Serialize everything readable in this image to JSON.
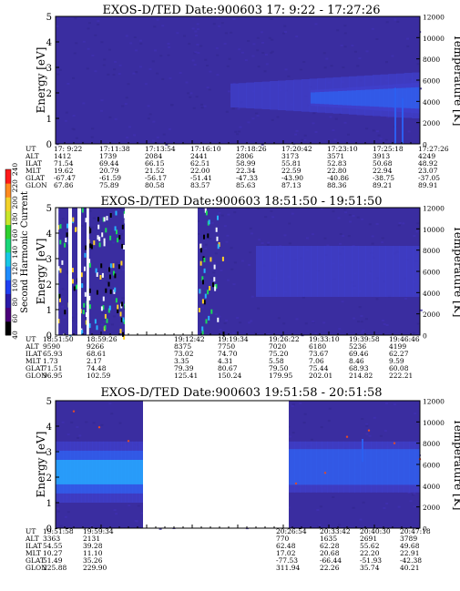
{
  "colors": {
    "background_fill": "#3a2da0",
    "plasma_mid": "#4242cc",
    "plasma_bright": "#2f63f0",
    "plasma_peak": "#26b2ff",
    "spot_green": "#1ad85a",
    "spot_white": "#f2f6ff",
    "spot_black": "#000000",
    "data_gap": "#ffffff",
    "text": "#000000"
  },
  "colorbar": {
    "title": "Second Harmonic Current",
    "ticks": [
      "40",
      "60",
      "80",
      "100",
      "120",
      "140",
      "160",
      "180",
      "200",
      "220",
      "240"
    ],
    "palette": [
      "#000000",
      "#4b007a",
      "#2a1aa8",
      "#1f3ff2",
      "#1e8cff",
      "#17c7e6",
      "#19d77a",
      "#2ed12e",
      "#c9e62a",
      "#f2d22a",
      "#ff8a1f",
      "#ff1a1a"
    ]
  },
  "chart_data": [
    {
      "type": "heatmap",
      "title": "EXOS-D/TED   Date:900603  17: 9:22 - 17:27:26",
      "ylabel": "Energy [eV]",
      "y2label": "Temperature [K]",
      "ylim": [
        0,
        5
      ],
      "y2lim": [
        0,
        12000
      ],
      "yticks": [
        "0",
        "1",
        "2",
        "3",
        "4",
        "5"
      ],
      "y2ticks": [
        "0",
        "2000",
        "4000",
        "6000",
        "8000",
        "10000",
        "12000"
      ],
      "orbit_rows": [
        "UT",
        "ALT",
        "ILAT",
        "MLT",
        "GLAT",
        "GLON"
      ],
      "orbit_columns": [
        [
          "17: 9:22",
          "1412",
          "71.54",
          "19.62",
          "-67.47",
          "67.86"
        ],
        [
          "17:11:38",
          "1739",
          "69.44",
          "20.79",
          "-61.59",
          "75.89"
        ],
        [
          "17:13:54",
          "2084",
          "66.15",
          "21.52",
          "-56.17",
          "80.58"
        ],
        [
          "17:16:10",
          "2441",
          "62.51",
          "22.00",
          "-51.41",
          "83.57"
        ],
        [
          "17:18:26",
          "2806",
          "58.99",
          "22.34",
          "-47.33",
          "85.63"
        ],
        [
          "17:20:42",
          "3173",
          "55.81",
          "22.59",
          "-43.90",
          "87.13"
        ],
        [
          "17:23:10",
          "3571",
          "52.83",
          "22.80",
          "-40.86",
          "88.36"
        ],
        [
          "17:25:18",
          "3913",
          "50.68",
          "22.94",
          "-38.75",
          "89.21"
        ],
        [
          "17:27:26",
          "4249",
          "48.92",
          "23.07",
          "-37.05",
          "89.91"
        ]
      ],
      "gaps": [],
      "bands": [
        {
          "t0": 0.48,
          "t1": 1.0,
          "e0": 1.0,
          "e1": 2.8,
          "level": 1,
          "grow": true
        },
        {
          "t0": 0.7,
          "t1": 1.0,
          "e0": 1.2,
          "e1": 2.4,
          "level": 2,
          "grow": true
        }
      ],
      "spikes": [
        {
          "t": 0.93,
          "e0": 0.0,
          "e1": 2.2
        },
        {
          "t": 0.95,
          "e0": 0.0,
          "e1": 1.8
        }
      ],
      "hot_spots": [],
      "temperature_trace": []
    },
    {
      "type": "heatmap",
      "title": "EXOS-D/TED   Date:900603  18:51:50 - 19:51:50",
      "ylabel": "Energy [eV]",
      "y2label": "Temperature [K]",
      "ylim": [
        0,
        5
      ],
      "y2lim": [
        0,
        12000
      ],
      "yticks": [
        "0",
        "1",
        "2",
        "3",
        "4",
        "5"
      ],
      "y2ticks": [
        "0",
        "2000",
        "4000",
        "6000",
        "8000",
        "10000",
        "12000"
      ],
      "orbit_rows": [
        "UT",
        "ALT",
        "ILAT",
        "MLT",
        "GLAT",
        "GLON"
      ],
      "orbit_columns": [
        [
          "18:51:50",
          "9590",
          "65.93",
          "1.73",
          "71.51",
          "96.95"
        ],
        [
          "18:59:26",
          "9266",
          "68.61",
          "2.17",
          "74.48",
          "102.59"
        ],
        [
          "19:12:42",
          "8375",
          "73.02",
          "3.35",
          "79.39",
          "125.41"
        ],
        [
          "19:19:34",
          "7750",
          "74.70",
          "4.31",
          "80.67",
          "150.24"
        ],
        [
          "19:26:22",
          "7020",
          "75.20",
          "5.58",
          "79.50",
          "179.95"
        ],
        [
          "19:33:10",
          "6180",
          "73.67",
          "7.06",
          "75.44",
          "202.01"
        ],
        [
          "19:39:58",
          "5236",
          "69.46",
          "8.46",
          "68.93",
          "214.82"
        ],
        [
          "19:46:46",
          "4199",
          "62.27",
          "9.59",
          "60.08",
          "222.21"
        ]
      ],
      "gaps": [
        {
          "t0": 0.0,
          "t1": 0.008
        },
        {
          "t0": 0.035,
          "t1": 0.045
        },
        {
          "t0": 0.06,
          "t1": 0.07
        },
        {
          "t0": 0.085,
          "t1": 0.092
        },
        {
          "t0": 0.19,
          "t1": 0.37
        },
        {
          "t0": 0.37,
          "t1": 0.39
        }
      ],
      "bands": [
        {
          "t0": 0.55,
          "t1": 1.0,
          "e0": 1.5,
          "e1": 3.5,
          "level": 1,
          "grow": false
        }
      ],
      "spikes": [
        {
          "t": 0.24,
          "e0": 0.0,
          "e1": 1.3
        }
      ],
      "hot_spots": [
        {
          "t0": 0.0,
          "t1": 0.19,
          "e0": 0.0,
          "e1": 5.0,
          "n": 140,
          "seed": 7
        },
        {
          "t0": 0.39,
          "t1": 0.46,
          "e0": 0.0,
          "e1": 5.0,
          "n": 45,
          "seed": 11
        },
        {
          "t0": 0.22,
          "t1": 0.26,
          "e0": 0.4,
          "e1": 4.8,
          "n": 16,
          "seed": 19
        }
      ],
      "temperature_trace": []
    },
    {
      "type": "heatmap",
      "title": "EXOS-D/TED   Date:900603  19:51:58 - 20:51:58",
      "ylabel": "Energy [eV]",
      "y2label": "Temperature [K]",
      "ylim": [
        0,
        5
      ],
      "y2lim": [
        0,
        12000
      ],
      "yticks": [
        "0",
        "1",
        "2",
        "3",
        "4",
        "5"
      ],
      "y2ticks": [
        "0",
        "2000",
        "4000",
        "6000",
        "8000",
        "10000",
        "12000"
      ],
      "orbit_rows": [
        "UT",
        "ALT",
        "ILAT",
        "MLT",
        "GLAT",
        "GLON"
      ],
      "orbit_columns": [
        [
          "19:51:58",
          "3363",
          "54.55",
          "10.27",
          "51.49",
          "225.88"
        ],
        [
          "19:59:34",
          "2131",
          "39.28",
          "11.10",
          "35.26",
          "229.90"
        ],
        [
          "20:26:54",
          "770",
          "62.48",
          "17.02",
          "-77.53",
          "311.94"
        ],
        [
          "20:33:42",
          "1635",
          "62.28",
          "20.68",
          "-66.44",
          "22.26"
        ],
        [
          "20:40:30",
          "2691",
          "55.62",
          "22.20",
          "-51.93",
          "35.74"
        ],
        [
          "20:47:18",
          "3789",
          "49.68",
          "22.91",
          "-42.38",
          "40.21"
        ]
      ],
      "gaps": [
        {
          "t0": 0.24,
          "t1": 0.64
        }
      ],
      "bands": [
        {
          "t0": 0.0,
          "t1": 0.24,
          "e0": 1.0,
          "e1": 3.4,
          "level": 3,
          "grow": false
        },
        {
          "t0": 0.64,
          "t1": 1.0,
          "e0": 1.4,
          "e1": 3.4,
          "level": 2,
          "grow": false
        }
      ],
      "spikes": [
        {
          "t": 0.84,
          "e0": 2.6,
          "e1": 3.5
        }
      ],
      "hot_spots": [],
      "temperature_trace": [
        {
          "t": 0.05,
          "k": 11000
        },
        {
          "t": 0.12,
          "k": 9500
        },
        {
          "t": 0.2,
          "k": 8200
        },
        {
          "t": 0.66,
          "k": 4200
        },
        {
          "t": 0.74,
          "k": 5200
        },
        {
          "t": 0.8,
          "k": 8600
        },
        {
          "t": 0.86,
          "k": 9200
        },
        {
          "t": 0.93,
          "k": 8000
        },
        {
          "t": 1.0,
          "k": 6500
        }
      ]
    }
  ]
}
